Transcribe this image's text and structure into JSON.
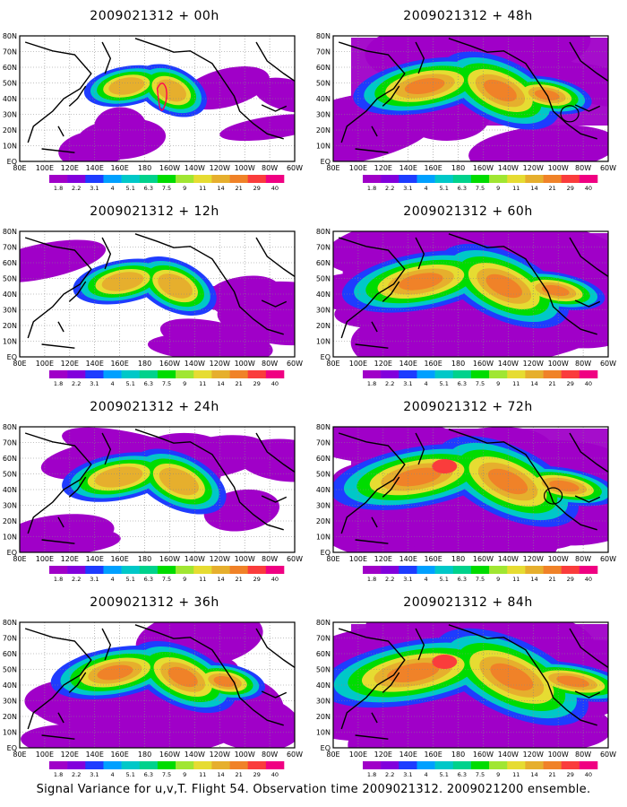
{
  "panels": [
    {
      "title": "2009021312 + 00h",
      "lead": 0
    },
    {
      "title": "2009021312 + 48h",
      "lead": 48
    },
    {
      "title": "2009021312 + 12h",
      "lead": 12
    },
    {
      "title": "2009021312 + 60h",
      "lead": 60
    },
    {
      "title": "2009021312 + 24h",
      "lead": 24
    },
    {
      "title": "2009021312 + 72h",
      "lead": 72
    },
    {
      "title": "2009021312 + 36h",
      "lead": 36
    },
    {
      "title": "2009021312 + 84h",
      "lead": 84
    }
  ],
  "lat_labels": [
    "80N",
    "70N",
    "60N",
    "50N",
    "40N",
    "30N",
    "20N",
    "10N",
    "EQ"
  ],
  "lon_labels": [
    "80E",
    "100E",
    "120E",
    "140E",
    "160E",
    "180",
    "160W",
    "140W",
    "120W",
    "100W",
    "80W",
    "60W"
  ],
  "colorbar": {
    "labels": [
      "1.8",
      "2.2",
      "3.1",
      "4",
      "5.1",
      "6.3",
      "7.5",
      "9",
      "11",
      "14",
      "21",
      "29",
      "40"
    ],
    "colors": [
      "#a000c8",
      "#8200dc",
      "#1e3cff",
      "#00a0ff",
      "#00c8c8",
      "#00d28c",
      "#00dc00",
      "#a0e632",
      "#e6dc32",
      "#e6af2d",
      "#f08228",
      "#fa3c3c",
      "#f00082"
    ]
  },
  "footer": "Signal Variance for u,v,T. Flight 54. Observation time 2009021312. 2009021200 ensemble."
}
